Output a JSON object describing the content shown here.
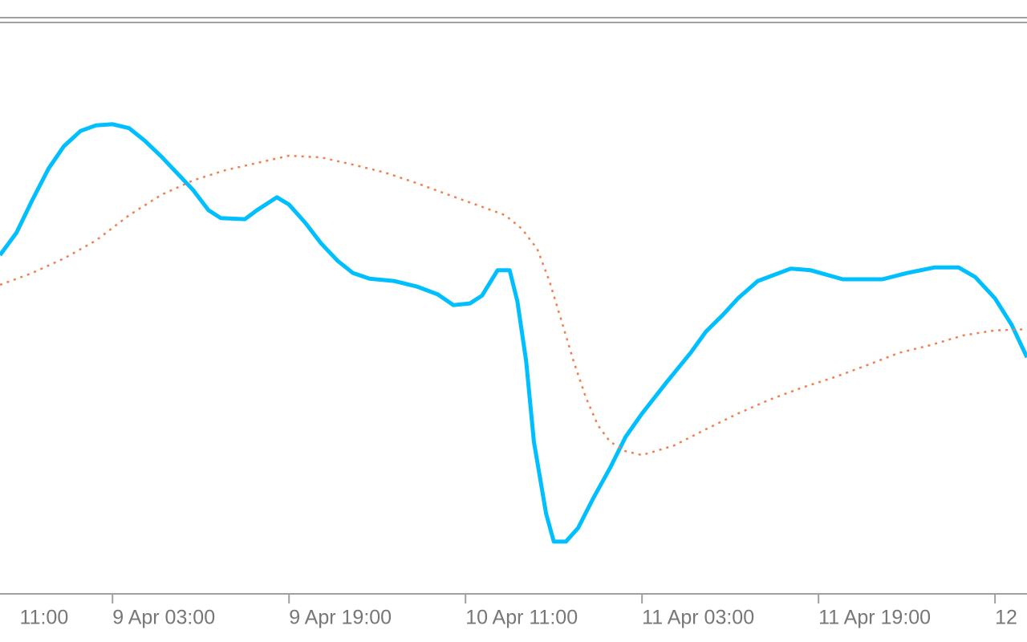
{
  "chart_data": {
    "type": "line",
    "xlim": [
      -10.2,
      82.9
    ],
    "ylim": [
      0,
      100
    ],
    "xticks": [
      {
        "value": -16,
        "label": "11:00"
      },
      {
        "value": 0,
        "label": "9 Apr 03:00"
      },
      {
        "value": 16,
        "label": "9 Apr 19:00"
      },
      {
        "value": 32,
        "label": "10 Apr 11:00"
      },
      {
        "value": 48,
        "label": "11 Apr 03:00"
      },
      {
        "value": 64,
        "label": "11 Apr 19:00"
      },
      {
        "value": 80,
        "label": "12"
      }
    ],
    "series": [
      {
        "color": "#00bfff",
        "style": "solid",
        "x": [
          -10.2,
          -8.7,
          -7.3,
          -5.8,
          -4.4,
          -2.9,
          -1.5,
          0,
          1.5,
          2.9,
          4.4,
          5.8,
          7.3,
          8.7,
          9.8,
          12,
          13.1,
          14.9,
          16,
          17.5,
          18.9,
          20.4,
          21.8,
          23.3,
          25.5,
          27.6,
          29.5,
          30.9,
          32.4,
          33.5,
          34.9,
          36,
          36.7,
          37.5,
          38.2,
          39.3,
          40,
          41.1,
          42.2,
          43.6,
          45.1,
          46.5,
          48,
          50.2,
          52.4,
          53.8,
          55.3,
          56.7,
          58.5,
          61.5,
          63.3,
          66.2,
          69.8,
          72,
          74.5,
          76.7,
          78.2,
          80,
          81.5,
          82.9
        ],
        "values": [
          60.3,
          64.3,
          70,
          75.7,
          79.7,
          82.4,
          83.4,
          83.6,
          82.9,
          80.7,
          77.9,
          75,
          71.9,
          68.3,
          66.9,
          66.7,
          68.3,
          70.6,
          69.3,
          66,
          62.4,
          59.3,
          57.1,
          56.1,
          55.7,
          54.7,
          53.3,
          51.4,
          51.7,
          53.1,
          57.6,
          57.6,
          52.1,
          41.4,
          27.1,
          14.3,
          9.3,
          9.3,
          11.7,
          17.1,
          22.4,
          27.9,
          32.1,
          37.6,
          42.9,
          46.7,
          49.6,
          52.6,
          55.7,
          57.9,
          57.6,
          56,
          56,
          57.1,
          58.1,
          58.1,
          56.4,
          52.6,
          47.9,
          42.1
        ]
      },
      {
        "color": "#f08050",
        "style": "dotted",
        "x": [
          -10.2,
          -7.3,
          -4.4,
          -1.5,
          1.5,
          4.4,
          7.3,
          10.2,
          13.1,
          16,
          18.9,
          21.8,
          24.7,
          27.6,
          30.5,
          33.5,
          35.6,
          37.1,
          38.5,
          39.6,
          40.7,
          41.8,
          42.9,
          44,
          45.1,
          46.5,
          48,
          50.9,
          53.8,
          56.7,
          59.6,
          62.5,
          65.5,
          68.4,
          71.3,
          74.2,
          77.1,
          80,
          82.9
        ],
        "values": [
          55,
          57.1,
          59.7,
          62.9,
          67.4,
          71,
          73.6,
          75.4,
          76.7,
          78,
          77.7,
          76.4,
          75,
          73.1,
          71,
          68.9,
          67.4,
          65,
          61.4,
          55.7,
          48.6,
          41.4,
          35,
          30,
          27.1,
          25.4,
          24.7,
          26.4,
          29.3,
          32.1,
          34.6,
          36.7,
          38.6,
          40.7,
          42.9,
          44.3,
          46,
          46.9,
          47.1
        ]
      }
    ]
  }
}
